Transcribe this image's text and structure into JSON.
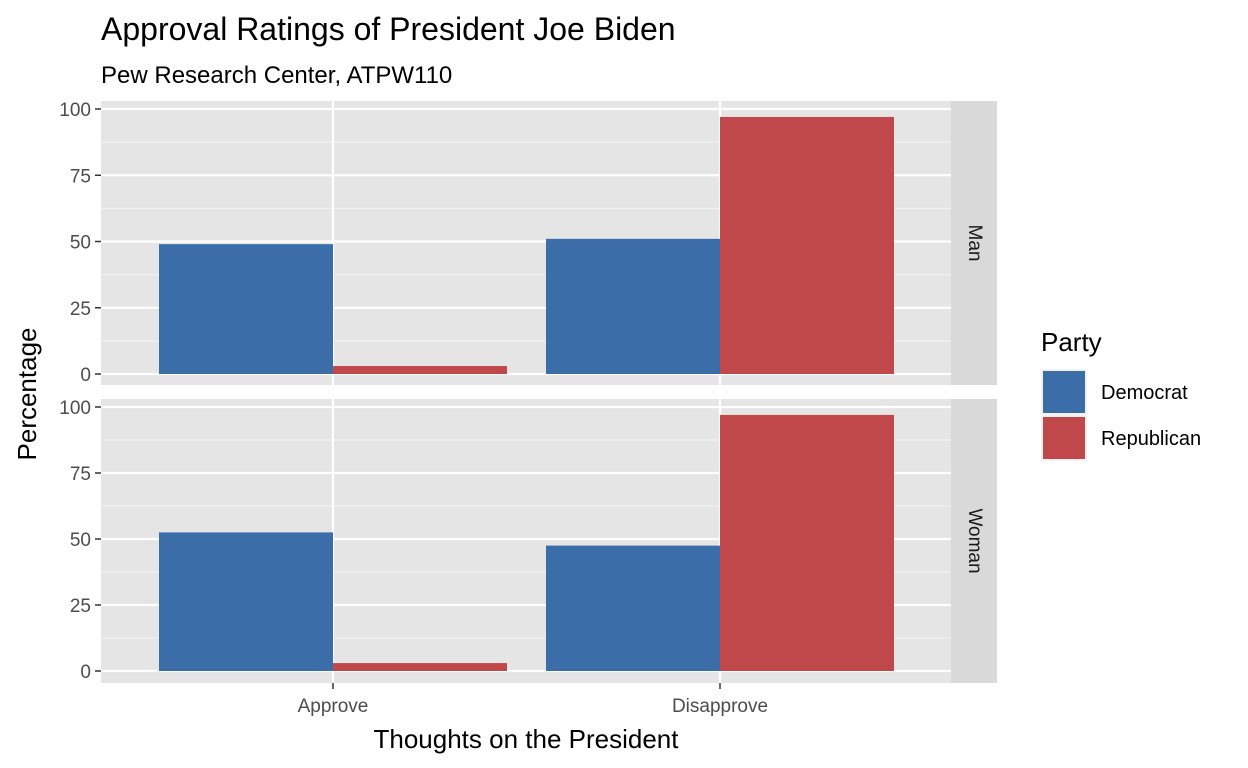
{
  "chart_data": {
    "type": "bar",
    "title": "Approval Ratings of President Joe Biden",
    "subtitle": "Pew Research Center, ATPW110",
    "xlabel": "Thoughts on the President",
    "ylabel": "Percentage",
    "categories": [
      "Approve",
      "Disapprove"
    ],
    "ylim": [
      0,
      100
    ],
    "yticks": [
      0,
      25,
      50,
      75,
      100
    ],
    "grid": true,
    "legend": {
      "title": "Party",
      "placement": "right",
      "entries": [
        "Democrat",
        "Republican"
      ]
    },
    "colors": {
      "Democrat": "#3b6ea8",
      "Republican": "#c0474a"
    },
    "facets": [
      {
        "label": "Man",
        "series": [
          {
            "name": "Democrat",
            "values": [
              49,
              51
            ]
          },
          {
            "name": "Republican",
            "values": [
              3,
              97
            ]
          }
        ]
      },
      {
        "label": "Woman",
        "series": [
          {
            "name": "Democrat",
            "values": [
              52.5,
              47.5
            ]
          },
          {
            "name": "Republican",
            "values": [
              3,
              97
            ]
          }
        ]
      }
    ]
  }
}
